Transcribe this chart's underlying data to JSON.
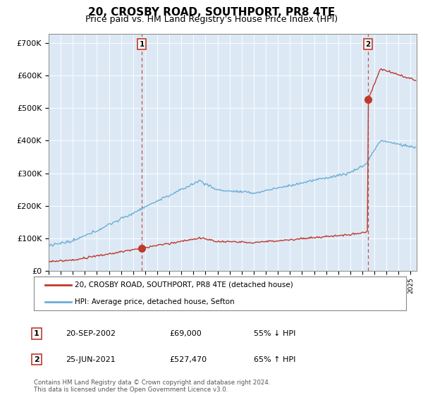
{
  "title": "20, CROSBY ROAD, SOUTHPORT, PR8 4TE",
  "subtitle": "Price paid vs. HM Land Registry's House Price Index (HPI)",
  "title_fontsize": 11,
  "subtitle_fontsize": 9,
  "ylabel_ticks": [
    "£0",
    "£100K",
    "£200K",
    "£300K",
    "£400K",
    "£500K",
    "£600K",
    "£700K"
  ],
  "ytick_values": [
    0,
    100000,
    200000,
    300000,
    400000,
    500000,
    600000,
    700000
  ],
  "ylim": [
    0,
    730000
  ],
  "xlim_start": 1995,
  "xlim_end": 2025.5,
  "hpi_color": "#6baed6",
  "price_color": "#c0392b",
  "bg_plot": "#dce9f5",
  "point1_date_num": 2002.72,
  "point1_price": 69000,
  "point1_label": "1",
  "point2_date_num": 2021.48,
  "point2_price": 527470,
  "point2_label": "2",
  "legend_line1": "20, CROSBY ROAD, SOUTHPORT, PR8 4TE (detached house)",
  "legend_line2": "HPI: Average price, detached house, Sefton",
  "table_row1": [
    "1",
    "20-SEP-2002",
    "£69,000",
    "55% ↓ HPI"
  ],
  "table_row2": [
    "2",
    "25-JUN-2021",
    "£527,470",
    "65% ↑ HPI"
  ],
  "footer": "Contains HM Land Registry data © Crown copyright and database right 2024.\nThis data is licensed under the Open Government Licence v3.0.",
  "bg_color": "#ffffff",
  "grid_color": "#aaaacc"
}
